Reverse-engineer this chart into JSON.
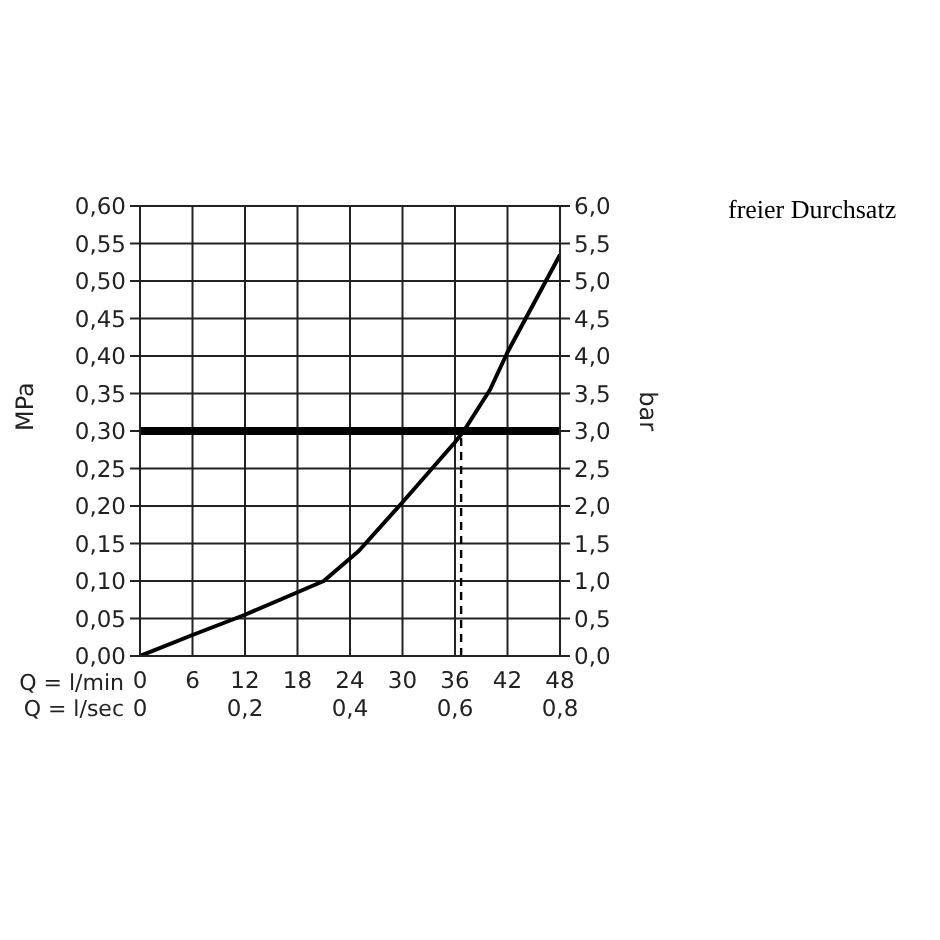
{
  "chart_data": {
    "type": "line",
    "title": "freier Durchsatz",
    "xlabel": "Q = l/min",
    "x2label": "Q = l/sec",
    "ylabel": "MPa",
    "y2label": "bar",
    "x": [
      0,
      6,
      12,
      18,
      21,
      24,
      25,
      30,
      36,
      37,
      40,
      42,
      48
    ],
    "series": [
      {
        "color": "#000000",
        "values": [
          0,
          0.028,
          0.055,
          0.085,
          0.1,
          0.13,
          0.14,
          0.205,
          0.285,
          0.3,
          0.355,
          0.405,
          0.535
        ]
      },
      {
        "type": "line",
        "color": "#000000",
        "line_style": "dashed",
        "x": [
          36.7,
          36.7
        ],
        "values": [
          0,
          0.3
        ]
      }
    ],
    "xlim": [
      0,
      48
    ],
    "xticks": [
      0,
      6,
      12,
      18,
      24,
      30,
      36,
      42,
      48
    ],
    "x2lim": [
      0,
      0.8
    ],
    "x2ticks": [
      {
        "value": 0,
        "label": "0"
      },
      {
        "value": 0.2,
        "label": "0,2"
      },
      {
        "value": 0.4,
        "label": "0,4"
      },
      {
        "value": 0.6,
        "label": "0,6"
      },
      {
        "value": 0.8,
        "label": "0,8"
      }
    ],
    "ylim": [
      0,
      0.6
    ],
    "yticks": [
      {
        "value": 0,
        "label": "0,00"
      },
      {
        "value": 0.05,
        "label": "0,05"
      },
      {
        "value": 0.1,
        "label": "0,10"
      },
      {
        "value": 0.15,
        "label": "0,15"
      },
      {
        "value": 0.2,
        "label": "0,20"
      },
      {
        "value": 0.25,
        "label": "0,25"
      },
      {
        "value": 0.3,
        "label": "0,30"
      },
      {
        "value": 0.35,
        "label": "0,35"
      },
      {
        "value": 0.4,
        "label": "0,40"
      },
      {
        "value": 0.45,
        "label": "0,45"
      },
      {
        "value": 0.5,
        "label": "0,50"
      },
      {
        "value": 0.55,
        "label": "0,55"
      },
      {
        "value": 0.6,
        "label": "0,60"
      }
    ],
    "y2lim": [
      0,
      6
    ],
    "y2ticks": [
      {
        "value": 0,
        "label": "0,0"
      },
      {
        "value": 0.5,
        "label": "0,5"
      },
      {
        "value": 1,
        "label": "1,0"
      },
      {
        "value": 1.5,
        "label": "1,5"
      },
      {
        "value": 2,
        "label": "2,0"
      },
      {
        "value": 2.5,
        "label": "2,5"
      },
      {
        "value": 3,
        "label": "3,0"
      },
      {
        "value": 3.5,
        "label": "3,5"
      },
      {
        "value": 4,
        "label": "4,0"
      },
      {
        "value": 4.5,
        "label": "4,5"
      },
      {
        "value": 5,
        "label": "5,0"
      },
      {
        "value": 5.5,
        "label": "5,5"
      },
      {
        "value": 6,
        "label": "6,0"
      }
    ],
    "ref_lines": [
      {
        "axis": "y",
        "value": 0.3,
        "color": "#000000"
      }
    ],
    "grid": true,
    "marker": "none",
    "line_style": "solid"
  }
}
